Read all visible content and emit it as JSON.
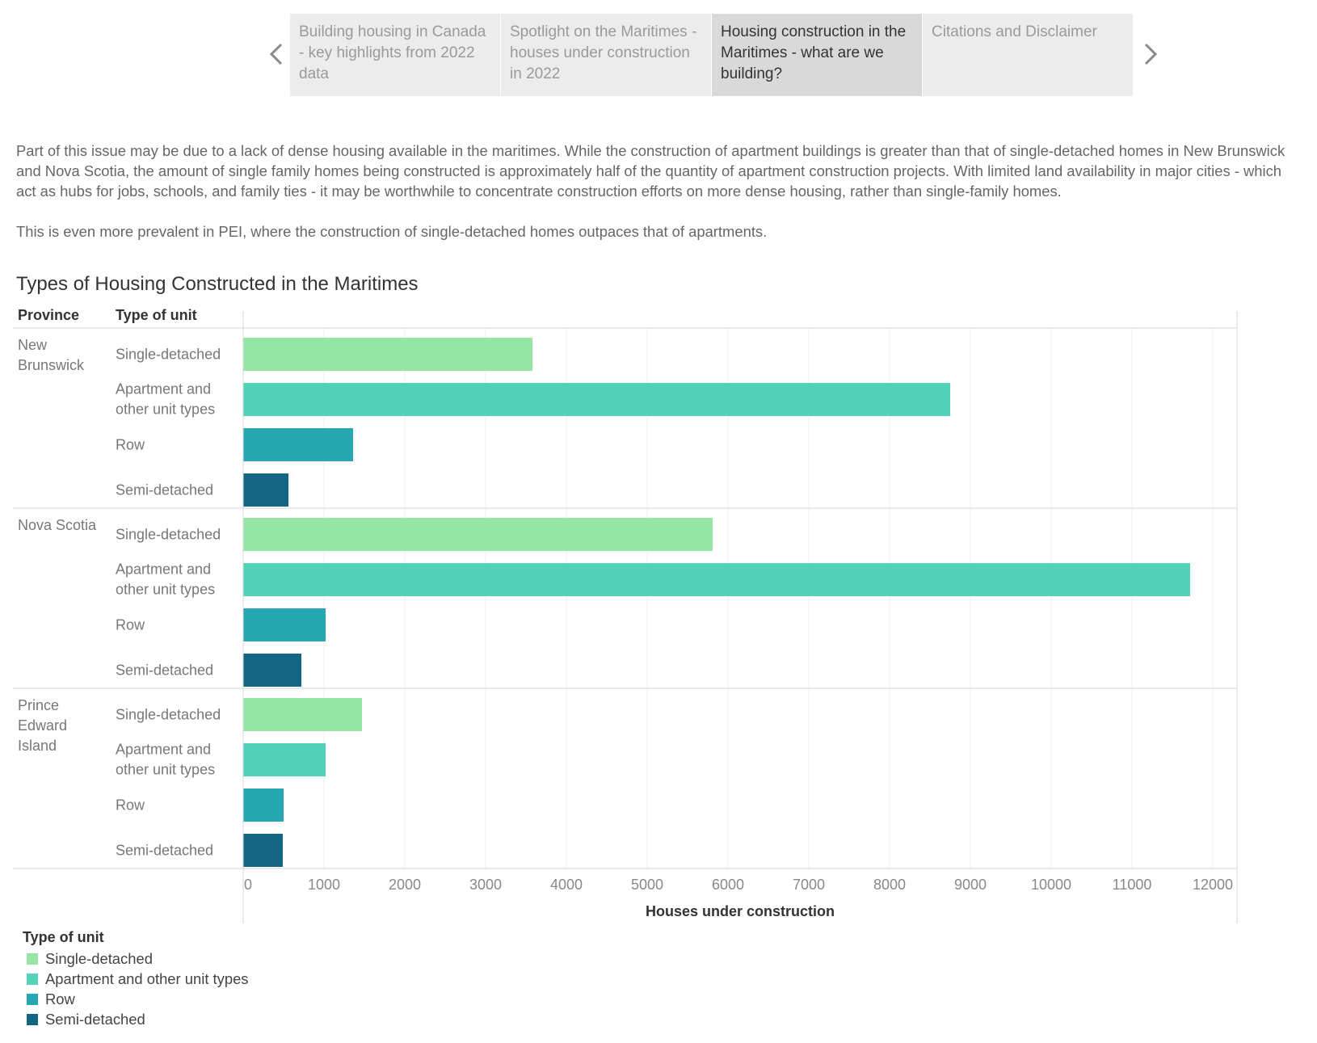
{
  "nav": {
    "prev_icon": "chevron-left-icon",
    "next_icon": "chevron-right-icon",
    "tabs": [
      {
        "label": "Building housing in Canada - key highlights from 2022 data",
        "active": false
      },
      {
        "label": "Spotlight on the Maritimes - houses under construction in 2022",
        "active": false
      },
      {
        "label": "Housing construction in the Maritimes - what are we building?",
        "active": true
      },
      {
        "label": "Citations and Disclaimer",
        "active": false
      }
    ]
  },
  "intro": {
    "paragraph1": "Part of this issue may be due to a lack of dense housing available in the maritimes. While the construction of apartment buildings is greater than that of single-detached homes in New Brunswick and Nova Scotia, the amount of single family homes being constructed is approximately half of the quantity of apartment construction projects. With limited land availability in major cities - which act as hubs for jobs, schools, and family ties - it may be worthwhile to concentrate construction efforts on more dense housing, rather than single-family homes.",
    "paragraph2": "This is even more prevalent in PEI, where the construction of single-detached homes outpaces that of apartments."
  },
  "chart_data": {
    "type": "bar",
    "orientation": "horizontal",
    "title": "Types of Housing Constructed in the Maritimes",
    "row_headers": {
      "province": "Province",
      "unit": "Type of unit"
    },
    "xlabel": "Houses under construction",
    "xlim": [
      0,
      12300
    ],
    "xticks": [
      0,
      1000,
      2000,
      3000,
      4000,
      5000,
      6000,
      7000,
      8000,
      9000,
      10000,
      11000,
      12000
    ],
    "grid": true,
    "units": [
      "Single-detached",
      "Apartment and other unit types",
      "Row",
      "Semi-detached"
    ],
    "colors": {
      "Single-detached": "#95e5a5",
      "Apartment and other unit types": "#51d2b9",
      "Row": "#26a7b1",
      "Semi-detached": "#136683"
    },
    "groups": [
      {
        "province": "New Brunswick",
        "values": [
          3580,
          8750,
          1360,
          560
        ]
      },
      {
        "province": "Nova Scotia",
        "values": [
          5810,
          11720,
          1020,
          720
        ]
      },
      {
        "province": "Prince Edward Island",
        "values": [
          1470,
          1020,
          500,
          490
        ]
      }
    ],
    "legend": {
      "title": "Type of unit",
      "position": "bottom-left"
    }
  }
}
